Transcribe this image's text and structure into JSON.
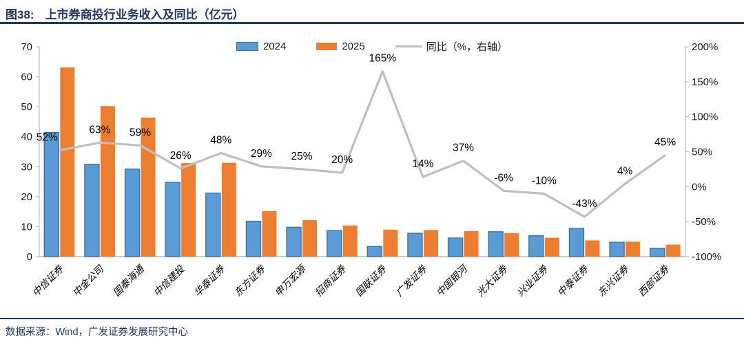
{
  "header": {
    "figure_label": "图38:",
    "title": "上市券商投行业务收入及同比（亿元）"
  },
  "footer": {
    "source": "数据来源：Wind，广发证券发展研究中心"
  },
  "colors": {
    "accent_navy": "#1F3864",
    "bar_2024_fill": "#5B9BD5",
    "bar_2024_border": "#41719C",
    "bar_2025_fill": "#ED7D31",
    "yoy_line_gray": "#BFBFBF",
    "axis_gray": "#BFBFBF",
    "label_black": "#1a1a1a"
  },
  "chart_data": {
    "type": "bar",
    "subtype": "grouped-bars-with-right-axis-line",
    "title": "上市券商投行业务收入及同比（亿元）",
    "categories": [
      "中信证券",
      "中金公司",
      "国泰海通",
      "中信建投",
      "华泰证券",
      "东方证券",
      "申万宏源",
      "招商证券",
      "国联证券",
      "广发证券",
      "中国银河",
      "光大证券",
      "兴业证券",
      "中泰证券",
      "东兴证券",
      "西部证券"
    ],
    "series": [
      {
        "name": "2024",
        "type": "bar",
        "axis": "left",
        "color": "#5B9BD5",
        "border": "#41719C",
        "values": [
          41.4,
          30.8,
          29.2,
          24.8,
          21.2,
          11.8,
          9.8,
          8.7,
          3.4,
          7.8,
          6.2,
          8.3,
          7.0,
          9.4,
          4.8,
          2.8
        ]
      },
      {
        "name": "2025",
        "type": "bar",
        "axis": "left",
        "color": "#ED7D31",
        "border": "#ED7D31",
        "values": [
          63.1,
          50.2,
          46.4,
          31.2,
          31.3,
          15.2,
          12.2,
          10.4,
          9.0,
          8.9,
          8.5,
          7.8,
          6.3,
          5.4,
          5.0,
          4.0
        ]
      },
      {
        "name": "同比（%，右轴）",
        "type": "line",
        "axis": "right",
        "color": "#BFBFBF",
        "values": [
          52,
          63,
          59,
          26,
          48,
          29,
          25,
          20,
          165,
          14,
          37,
          -6,
          -10,
          -43,
          4,
          45
        ],
        "labels": [
          "52%",
          "63%",
          "59%",
          "26%",
          "48%",
          "29%",
          "25%",
          "20%",
          "165%",
          "14%",
          "37%",
          "-6%",
          "-10%",
          "-43%",
          "4%",
          "45%"
        ],
        "label_dx": [
          -18,
          0,
          0,
          0,
          0,
          0,
          0,
          0,
          0,
          0,
          0,
          0,
          0,
          0,
          0,
          0
        ]
      }
    ],
    "left_axis": {
      "min": 0,
      "max": 70,
      "step": 10,
      "ticks": [
        "0",
        "10",
        "20",
        "30",
        "40",
        "50",
        "60",
        "70"
      ]
    },
    "right_axis": {
      "min": -100,
      "max": 200,
      "step": 50,
      "ticks": [
        "-100%",
        "-50%",
        "0%",
        "50%",
        "100%",
        "150%",
        "200%"
      ]
    },
    "legend_position": "top-center",
    "grid": false,
    "xlabel": "",
    "ylabel": ""
  }
}
